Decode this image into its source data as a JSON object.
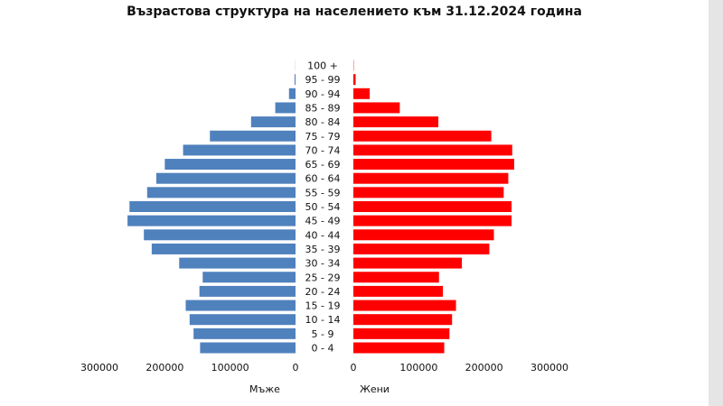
{
  "chart_data": {
    "type": "bar",
    "orientation": "horizontal",
    "layout": "population-pyramid",
    "title": "Възрастова структура на населението към 31.12.2024 година",
    "categories": [
      "0 - 4",
      "5 - 9",
      "10 - 14",
      "15 - 19",
      "20 - 24",
      "25 - 29",
      "30 - 34",
      "35 - 39",
      "40 - 44",
      "45 - 49",
      "50 - 54",
      "55 - 59",
      "60 - 64",
      "65 - 69",
      "70 - 74",
      "75 - 79",
      "80 - 84",
      "85 - 89",
      "90 - 94",
      "95 - 99",
      "100 +"
    ],
    "series": [
      {
        "name": "Мъже",
        "side": "left",
        "color": "#4F81BD",
        "values": [
          146000,
          156000,
          162000,
          168000,
          147000,
          142000,
          178000,
          220000,
          232000,
          257000,
          254000,
          227000,
          213000,
          200000,
          172000,
          131000,
          68000,
          31000,
          10000,
          1500,
          200
        ]
      },
      {
        "name": "Жени",
        "side": "right",
        "color": "#FF0000",
        "values": [
          139000,
          147000,
          151000,
          157000,
          137000,
          131000,
          166000,
          208000,
          215000,
          242000,
          242000,
          230000,
          237000,
          246000,
          243000,
          211000,
          130000,
          71000,
          25000,
          3500,
          500
        ]
      }
    ],
    "xlim": [
      0,
      300000
    ],
    "left_ticks": [
      "300000",
      "200000",
      "100000",
      "0"
    ],
    "right_ticks": [
      "0",
      "100000",
      "200000",
      "300000"
    ],
    "left_axis_label": "Мъже",
    "right_axis_label": "Жени",
    "gridlines": false,
    "legend": "none"
  },
  "colors": {
    "male_bar": "#4F81BD",
    "female_bar": "#FF0000",
    "page_edge": "#E5E5E5"
  }
}
